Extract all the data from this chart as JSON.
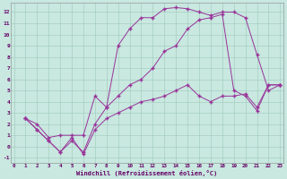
{
  "xlabel": "Windchill (Refroidissement éolien,°C)",
  "bg_color": "#c8e8e0",
  "grid_color": "#a0c8bc",
  "line_color": "#993399",
  "xlim": [
    -0.3,
    23.3
  ],
  "ylim": [
    -1.5,
    12.8
  ],
  "xticks": [
    0,
    1,
    2,
    3,
    4,
    5,
    6,
    7,
    8,
    9,
    10,
    11,
    12,
    13,
    14,
    15,
    16,
    17,
    18,
    19,
    20,
    21,
    22,
    23
  ],
  "yticks": [
    -1,
    0,
    1,
    2,
    3,
    4,
    5,
    6,
    7,
    8,
    9,
    10,
    11,
    12
  ],
  "line1_x": [
    1,
    2,
    3,
    4,
    5,
    6,
    7,
    8,
    9,
    10,
    11,
    12,
    13,
    14,
    15,
    16,
    17,
    18,
    19,
    20,
    21,
    22,
    23
  ],
  "line1_y": [
    2.5,
    2.0,
    0.8,
    1.0,
    1.0,
    1.0,
    4.5,
    3.5,
    9.0,
    10.5,
    11.5,
    11.5,
    12.3,
    12.4,
    12.3,
    12.0,
    11.7,
    12.0,
    12.0,
    11.5,
    8.2,
    5.0,
    5.5
  ],
  "line2_x": [
    1,
    2,
    3,
    4,
    5,
    6,
    7,
    8,
    9,
    10,
    11,
    12,
    13,
    14,
    15,
    16,
    17,
    18,
    19,
    20,
    21,
    22,
    23
  ],
  "line2_y": [
    2.5,
    1.5,
    0.5,
    -0.5,
    0.5,
    -0.5,
    2.0,
    3.5,
    4.5,
    5.5,
    6.0,
    7.0,
    8.5,
    9.0,
    10.5,
    11.3,
    11.5,
    11.8,
    5.0,
    4.5,
    3.2,
    5.5,
    5.5
  ],
  "line3_x": [
    1,
    2,
    3,
    4,
    5,
    6,
    7,
    8,
    9,
    10,
    11,
    12,
    13,
    14,
    15,
    16,
    17,
    18,
    19,
    20,
    21,
    22,
    23
  ],
  "line3_y": [
    2.5,
    1.5,
    0.5,
    -0.5,
    0.8,
    -0.7,
    1.5,
    2.5,
    3.0,
    3.5,
    4.0,
    4.2,
    4.5,
    5.0,
    5.5,
    4.5,
    4.0,
    4.5,
    4.5,
    4.7,
    3.5,
    5.5,
    5.5
  ]
}
